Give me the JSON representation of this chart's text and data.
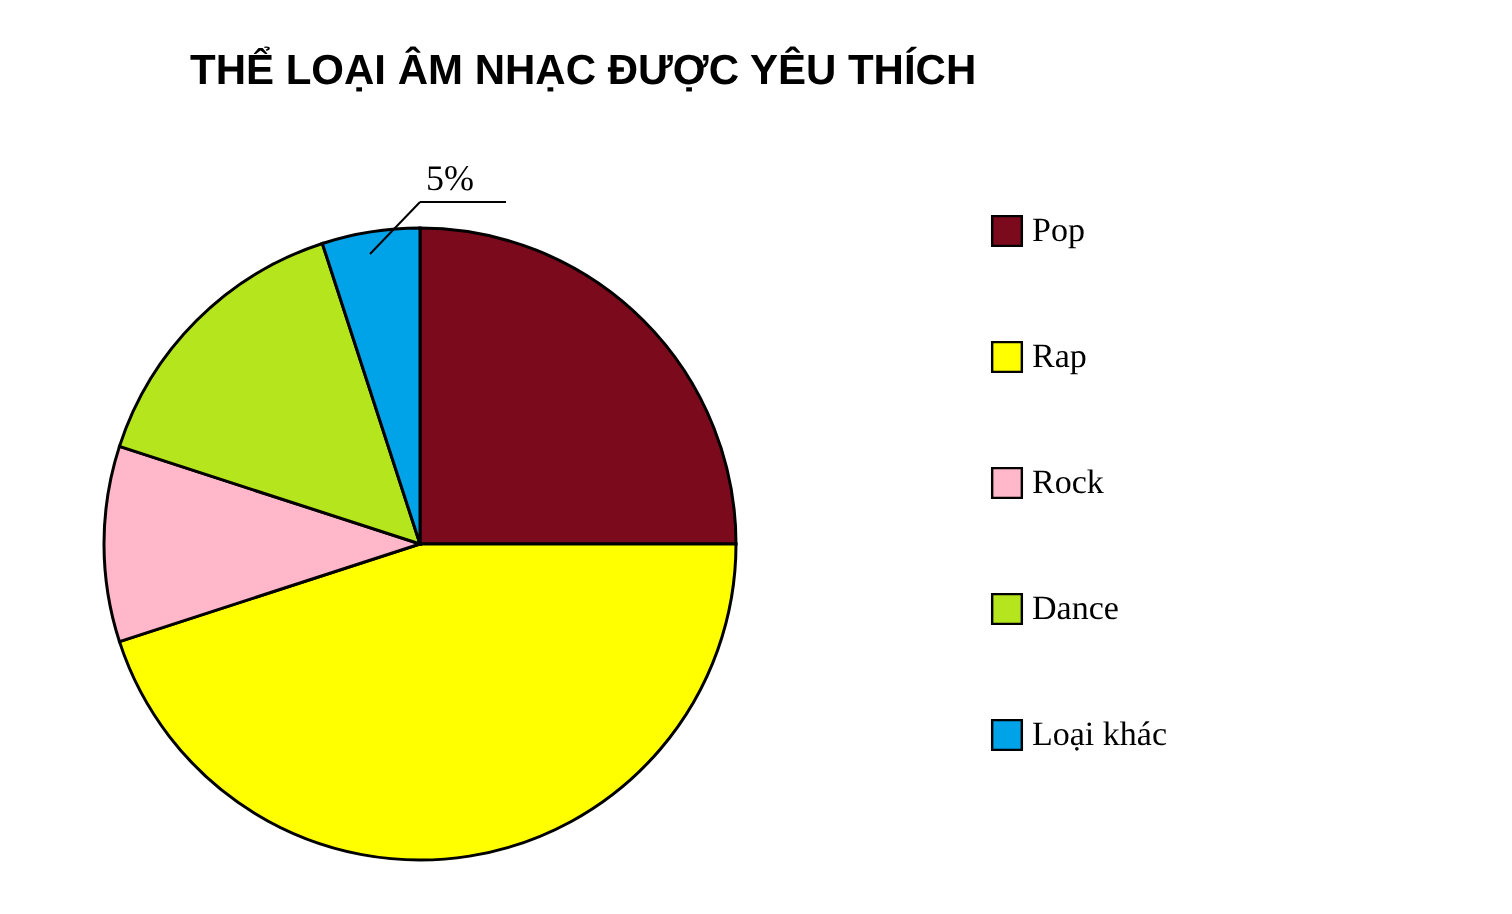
{
  "chart_data": {
    "type": "pie",
    "title": "THỂ LOẠI ÂM NHẠC ĐƯỢC YÊU THÍCH",
    "categories": [
      "Pop",
      "Rap",
      "Rock",
      "Dance",
      "Loại khác"
    ],
    "values": [
      25,
      45,
      10,
      15,
      5
    ],
    "colors": [
      "#7a0a1c",
      "#ffff00",
      "#ffb7c9",
      "#b5e51d",
      "#00a2e8"
    ],
    "legend": "right",
    "annotations": [
      "5%"
    ]
  }
}
